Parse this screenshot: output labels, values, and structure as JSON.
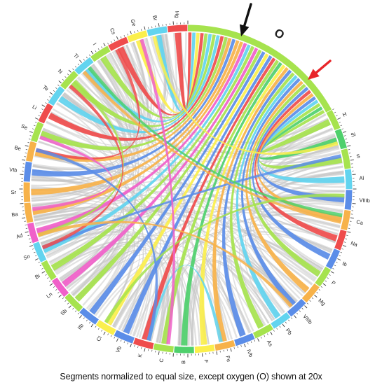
{
  "diagram": {
    "caption": "Segments normalized to equal size, except oxygen (O) shown at 20x",
    "highlight_label": "O",
    "colors": {
      "background": "#ffffff",
      "ribbon_gray": "#c8c8c8",
      "black_arrow": "#111111",
      "red_arrow": "#e8262a"
    },
    "palette": [
      "#ef4c4c",
      "#a6e34e",
      "#5b8de8",
      "#f7b24a",
      "#62d4ef",
      "#f060c9",
      "#fbef4c",
      "#4fd06c"
    ],
    "segments": [
      {
        "label": "O",
        "color": "#a6e34e"
      },
      {
        "label": "H",
        "color": "#a6e34e"
      },
      {
        "label": "Si",
        "color": "#4fd06c"
      },
      {
        "label": "S",
        "color": "#a6e34e"
      },
      {
        "label": "Al",
        "color": "#62d4ef"
      },
      {
        "label": "VIIIb",
        "color": "#5b8de8"
      },
      {
        "label": "Ca",
        "color": "#f7b24a"
      },
      {
        "label": "Na",
        "color": "#ef4c4c"
      },
      {
        "label": "Ib",
        "color": "#5b8de8"
      },
      {
        "label": "P",
        "color": "#a6e34e"
      },
      {
        "label": "Mg",
        "color": "#f7b24a"
      },
      {
        "label": "VIIIb",
        "color": "#5b8de8"
      },
      {
        "label": "Pb",
        "color": "#62d4ef"
      },
      {
        "label": "As",
        "color": "#a6e34e"
      },
      {
        "label": "IVb",
        "color": "#5b8de8"
      },
      {
        "label": "Fe",
        "color": "#f7b24a"
      },
      {
        "label": "F",
        "color": "#fbef4c"
      },
      {
        "label": "B",
        "color": "#4fd06c"
      },
      {
        "label": "C",
        "color": "#a6e34e"
      },
      {
        "label": "K",
        "color": "#ef4c4c"
      },
      {
        "label": "Vb",
        "color": "#5b8de8"
      },
      {
        "label": "Cl",
        "color": "#fbef4c"
      },
      {
        "label": "IIb",
        "color": "#5b8de8"
      },
      {
        "label": "Sb",
        "color": "#a6e34e"
      },
      {
        "label": "Ln",
        "color": "#f060c9"
      },
      {
        "label": "Bi",
        "color": "#a6e34e"
      },
      {
        "label": "Sn",
        "color": "#62d4ef"
      },
      {
        "label": "Ad",
        "color": "#f060c9"
      },
      {
        "label": "Ba",
        "color": "#f7b24a"
      },
      {
        "label": "Sr",
        "color": "#f7b24a"
      },
      {
        "label": "VIb",
        "color": "#5b8de8"
      },
      {
        "label": "Be",
        "color": "#f7b24a"
      },
      {
        "label": "Se",
        "color": "#a6e34e"
      },
      {
        "label": "Li",
        "color": "#ef4c4c"
      },
      {
        "label": "Te",
        "color": "#62d4ef"
      },
      {
        "label": "N",
        "color": "#a6e34e"
      },
      {
        "label": "Tl",
        "color": "#62d4ef"
      },
      {
        "label": "I",
        "color": "#a6e34e"
      },
      {
        "label": "Cs",
        "color": "#ef4c4c"
      },
      {
        "label": "Ge",
        "color": "#fbef4c"
      },
      {
        "label": "Br",
        "color": "#62d4ef"
      },
      {
        "label": "Hg",
        "color": "#ef4c4c"
      }
    ]
  }
}
